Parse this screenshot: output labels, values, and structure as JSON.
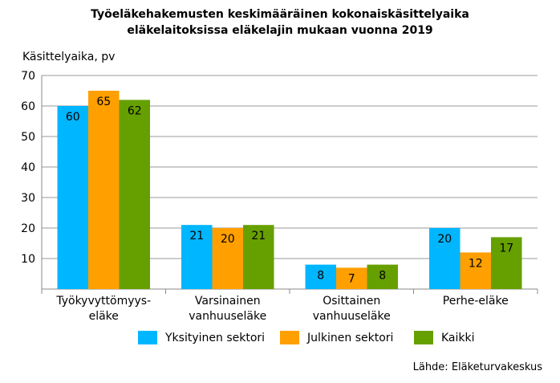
{
  "chart_data": {
    "type": "bar",
    "title": "Työeläkehakemusten keskimääräinen kokonaiskäsittelyaika eläkelaitoksissa eläkelajin mukaan vuonna 2019",
    "title_lines": [
      "Työeläkehakemusten keskimääräinen kokonaiskäsittelyaika",
      "eläkelaitoksissa eläkelajin mukaan vuonna 2019"
    ],
    "ylabel": "Käsittelyaika, pv",
    "xlabel": "",
    "categories": [
      [
        "Työkyvyttömyys-",
        "eläke"
      ],
      [
        "Varsinainen",
        "vanhuuseläke"
      ],
      [
        "Osittainen",
        "vanhuuseläke"
      ],
      [
        "Perhe-eläke"
      ]
    ],
    "series": [
      {
        "name": "Yksityinen sektori",
        "color": "#00b6ff",
        "values": [
          60,
          21,
          8,
          20
        ]
      },
      {
        "name": "Julkinen sektori",
        "color": "#ff9f00",
        "values": [
          65,
          20,
          7,
          12
        ]
      },
      {
        "name": "Kaikki",
        "color": "#66a000",
        "values": [
          62,
          21,
          8,
          17
        ]
      }
    ],
    "ylim": [
      0,
      70
    ],
    "yticks": [
      10,
      20,
      30,
      40,
      50,
      60,
      70
    ],
    "grid": true,
    "legend_position": "bottom",
    "source": "Lähde: Eläketurvakeskus"
  }
}
